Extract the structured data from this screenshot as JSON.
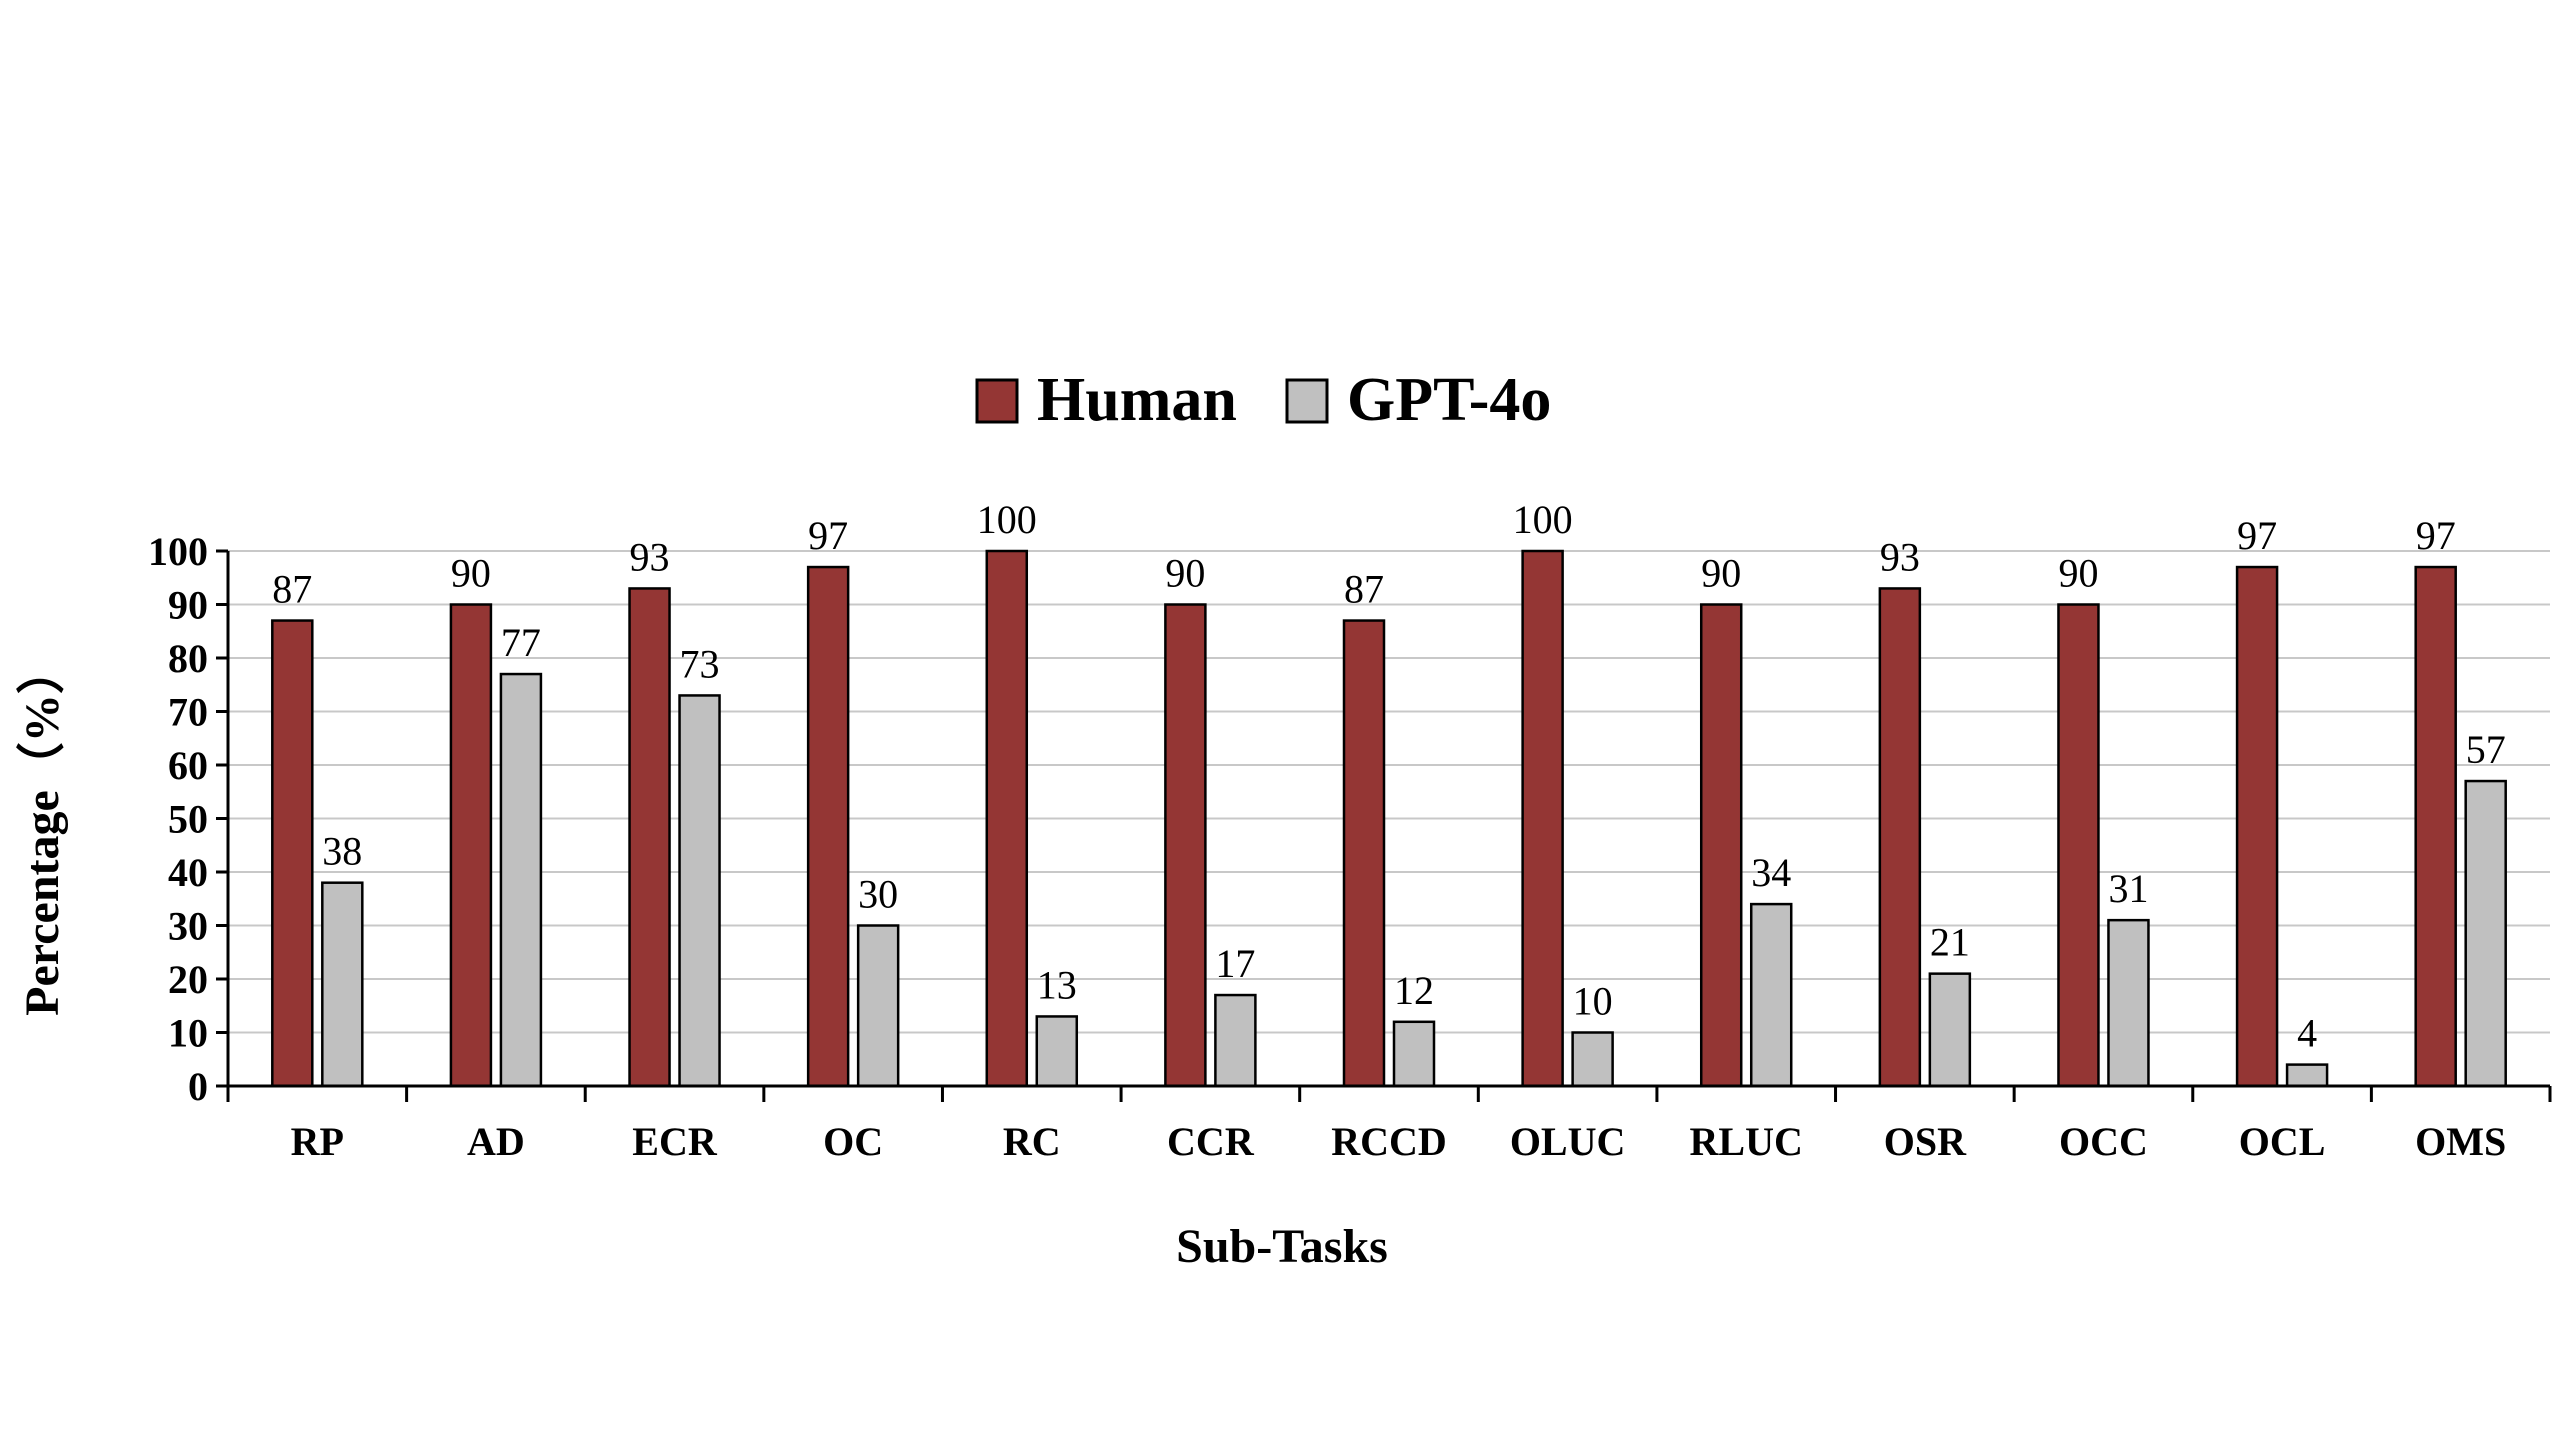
{
  "chart_data": {
    "type": "bar",
    "categories": [
      "RP",
      "AD",
      "ECR",
      "OC",
      "RC",
      "CCR",
      "RCCD",
      "OLUC",
      "RLUC",
      "OSR",
      "OCC",
      "OCL",
      "OMS"
    ],
    "series": [
      {
        "name": "Human",
        "color": "#943634",
        "values": [
          87,
          90,
          93,
          97,
          100,
          90,
          87,
          100,
          90,
          93,
          90,
          97,
          97
        ],
        "labels": [
          "87",
          "90",
          "93",
          "97",
          "100",
          "90",
          "87",
          "100",
          "90",
          "93",
          "90",
          "97",
          "97"
        ]
      },
      {
        "name": "GPT-4o",
        "color": "#c0c0c0",
        "values": [
          38,
          77,
          73,
          30,
          13,
          17,
          12,
          10,
          34,
          21,
          31,
          4,
          57
        ],
        "labels": [
          "38",
          "77",
          "73",
          "30",
          "13",
          "17",
          "12",
          "10",
          "34",
          "21",
          "31",
          "4",
          "57"
        ]
      }
    ],
    "xlabel": "Sub-Tasks",
    "ylabel": "Percentage（%）",
    "ylim": [
      0,
      100
    ],
    "yticks": [
      "0",
      "10",
      "20",
      "30",
      "40",
      "50",
      "60",
      "70",
      "80",
      "90",
      "100"
    ],
    "grid": true,
    "legend_position": "top-center"
  }
}
